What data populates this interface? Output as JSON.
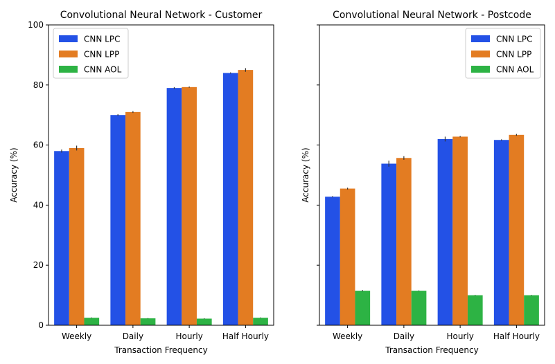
{
  "colors": {
    "CNN LPC": "#2351e6",
    "CNN LPP": "#e37c22",
    "CNN AOL": "#2db344",
    "error_bar": "#333333",
    "axis": "#000000"
  },
  "chart_data": [
    {
      "type": "bar",
      "title": "Convolutional Neural Network - Customer",
      "xlabel": "Transaction Frequency",
      "ylabel": "Accuracy (%)",
      "ylim": [
        0,
        100
      ],
      "yticks": [
        0,
        20,
        40,
        60,
        80,
        100
      ],
      "show_ytick_labels": true,
      "grid": false,
      "legend_position": "top-left",
      "categories": [
        "Weekly",
        "Daily",
        "Hourly",
        "Half Hourly"
      ],
      "series": [
        {
          "name": "CNN LPC",
          "values": [
            58.0,
            70.0,
            79.0,
            84.0
          ],
          "error": [
            0.5,
            0.3,
            0.3,
            0.2
          ]
        },
        {
          "name": "CNN LPP",
          "values": [
            59.0,
            71.0,
            79.3,
            85.0
          ],
          "error": [
            0.8,
            0.3,
            0.2,
            0.6
          ]
        },
        {
          "name": "CNN AOL",
          "values": [
            2.5,
            2.3,
            2.2,
            2.5
          ],
          "error": [
            0.1,
            0.1,
            0.1,
            0.1
          ]
        }
      ]
    },
    {
      "type": "bar",
      "title": "Convolutional Neural Network - Postcode",
      "xlabel": "Transaction Frequency",
      "ylabel": "Accuracy (%)",
      "ylim": [
        0,
        100
      ],
      "yticks": [
        0,
        20,
        40,
        60,
        80,
        100
      ],
      "show_ytick_labels": false,
      "grid": false,
      "legend_position": "top-right",
      "categories": [
        "Weekly",
        "Daily",
        "Hourly",
        "Half Hourly"
      ],
      "series": [
        {
          "name": "CNN LPC",
          "values": [
            42.8,
            53.8,
            62.0,
            61.7
          ],
          "error": [
            0.2,
            1.0,
            0.8,
            0.2
          ]
        },
        {
          "name": "CNN LPP",
          "values": [
            45.5,
            55.7,
            62.8,
            63.4
          ],
          "error": [
            0.3,
            0.6,
            0.2,
            0.3
          ]
        },
        {
          "name": "CNN AOL",
          "values": [
            11.5,
            11.5,
            10.0,
            10.0
          ],
          "error": [
            0.2,
            0.1,
            0.1,
            0.1
          ]
        }
      ]
    }
  ]
}
